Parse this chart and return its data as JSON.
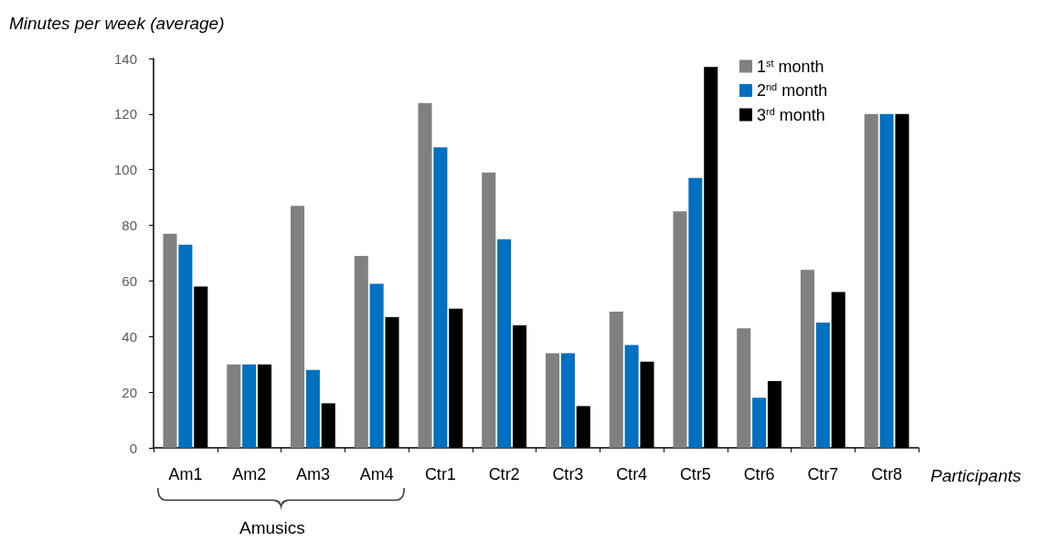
{
  "chart_data": {
    "type": "bar",
    "xlabel": "Participants",
    "ylabel": "Minutes per week (average)",
    "categories": [
      "Am1",
      "Am2",
      "Am3",
      "Am4",
      "Ctr1",
      "Ctr2",
      "Ctr3",
      "Ctr4",
      "Ctr5",
      "Ctr6",
      "Ctr7",
      "Ctr8"
    ],
    "series": [
      {
        "name": "1$^{st}$ month",
        "color": "#808080",
        "values": [
          77,
          30,
          87,
          69,
          124,
          99,
          34,
          49,
          85,
          43,
          64,
          120
        ]
      },
      {
        "name": "2$^{nd}$ month",
        "color": "#0070c0",
        "values": [
          73,
          30,
          28,
          59,
          108,
          75,
          34,
          37,
          97,
          18,
          45,
          120
        ]
      },
      {
        "name": "3$^{rd}$ month",
        "color": "#000000",
        "values": [
          58,
          30,
          16,
          47,
          50,
          44,
          15,
          31,
          137,
          24,
          56,
          120
        ]
      }
    ],
    "ylim": [
      0,
      140
    ],
    "yticks": [
      0,
      20,
      40,
      60,
      80,
      100,
      120,
      140
    ],
    "grid": false,
    "legend": "top right",
    "annotations": [
      "Amusics"
    ]
  }
}
